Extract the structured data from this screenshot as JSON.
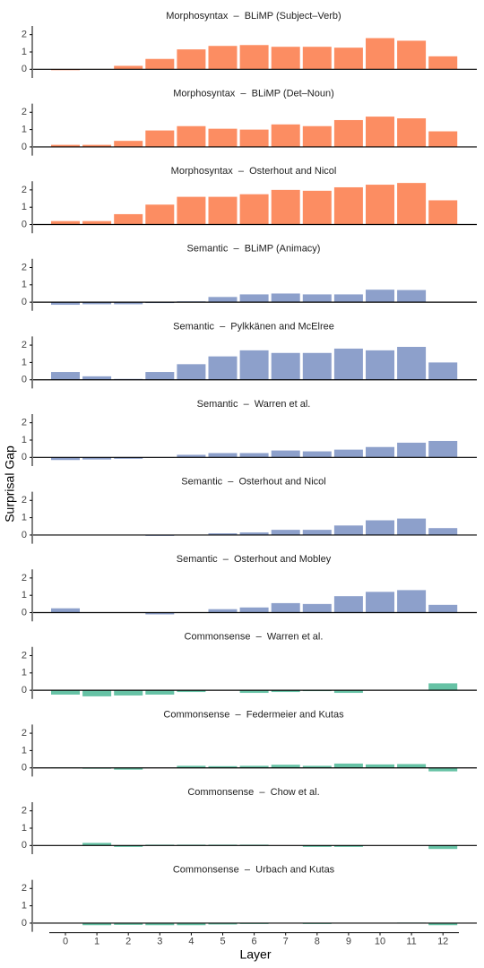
{
  "y_label": "Surprisal Gap",
  "x_label": "Layer",
  "chart_data": [
    {
      "type": "bar",
      "title": "Morphosyntax  –  BLiMP (Subject–Verb)",
      "categories": [
        "0",
        "1",
        "2",
        "3",
        "4",
        "5",
        "6",
        "7",
        "8",
        "9",
        "10",
        "11",
        "12"
      ],
      "values": [
        -0.05,
        0.02,
        0.2,
        0.6,
        1.15,
        1.35,
        1.4,
        1.3,
        1.3,
        1.25,
        1.8,
        1.65,
        0.75
      ],
      "color": "#fc8d62",
      "ylim": [
        -0.5,
        2.5
      ],
      "yticks": [
        0,
        1,
        2
      ]
    },
    {
      "type": "bar",
      "title": "Morphosyntax  –  BLiMP (Det–Noun)",
      "categories": [
        "0",
        "1",
        "2",
        "3",
        "4",
        "5",
        "6",
        "7",
        "8",
        "9",
        "10",
        "11",
        "12"
      ],
      "values": [
        0.12,
        0.12,
        0.35,
        0.95,
        1.2,
        1.05,
        1.0,
        1.3,
        1.2,
        1.55,
        1.75,
        1.65,
        0.9
      ],
      "color": "#fc8d62",
      "ylim": [
        -0.5,
        2.5
      ],
      "yticks": [
        0,
        1,
        2
      ]
    },
    {
      "type": "bar",
      "title": "Morphosyntax  –  Osterhout and Nicol",
      "categories": [
        "0",
        "1",
        "2",
        "3",
        "4",
        "5",
        "6",
        "7",
        "8",
        "9",
        "10",
        "11",
        "12"
      ],
      "values": [
        0.2,
        0.2,
        0.6,
        1.15,
        1.6,
        1.6,
        1.75,
        2.0,
        1.95,
        2.15,
        2.3,
        2.4,
        1.4
      ],
      "color": "#fc8d62",
      "ylim": [
        -0.5,
        2.5
      ],
      "yticks": [
        0,
        1,
        2
      ]
    },
    {
      "type": "bar",
      "title": "Semantic  –  BLiMP (Animacy)",
      "categories": [
        "0",
        "1",
        "2",
        "3",
        "4",
        "5",
        "6",
        "7",
        "8",
        "9",
        "10",
        "11",
        "12"
      ],
      "values": [
        -0.15,
        -0.12,
        -0.12,
        -0.05,
        0.05,
        0.3,
        0.45,
        0.5,
        0.45,
        0.45,
        0.72,
        0.7,
        0.02
      ],
      "color": "#8da0cb",
      "ylim": [
        -0.5,
        2.5
      ],
      "yticks": [
        0,
        1,
        2
      ]
    },
    {
      "type": "bar",
      "title": "Semantic  –  Pylkkänen and McElree",
      "categories": [
        "0",
        "1",
        "2",
        "3",
        "4",
        "5",
        "6",
        "7",
        "8",
        "9",
        "10",
        "11",
        "12"
      ],
      "values": [
        0.45,
        0.2,
        0.05,
        0.45,
        0.9,
        1.35,
        1.7,
        1.55,
        1.55,
        1.8,
        1.7,
        1.9,
        1.0
      ],
      "color": "#8da0cb",
      "ylim": [
        -0.5,
        2.5
      ],
      "yticks": [
        0,
        1,
        2
      ]
    },
    {
      "type": "bar",
      "title": "Semantic  –  Warren et al.",
      "categories": [
        "0",
        "1",
        "2",
        "3",
        "4",
        "5",
        "6",
        "7",
        "8",
        "9",
        "10",
        "11",
        "12"
      ],
      "values": [
        -0.15,
        -0.12,
        -0.08,
        -0.02,
        0.15,
        0.25,
        0.25,
        0.4,
        0.35,
        0.45,
        0.6,
        0.85,
        0.95
      ],
      "color": "#8da0cb",
      "ylim": [
        -0.5,
        2.5
      ],
      "yticks": [
        0,
        1,
        2
      ]
    },
    {
      "type": "bar",
      "title": "Semantic  –  Osterhout and Nicol",
      "categories": [
        "0",
        "1",
        "2",
        "3",
        "4",
        "5",
        "6",
        "7",
        "8",
        "9",
        "10",
        "11",
        "12"
      ],
      "values": [
        0.02,
        0,
        0,
        -0.05,
        0,
        0.1,
        0.15,
        0.3,
        0.3,
        0.55,
        0.85,
        0.95,
        0.4
      ],
      "color": "#8da0cb",
      "ylim": [
        -0.5,
        2.5
      ],
      "yticks": [
        0,
        1,
        2
      ]
    },
    {
      "type": "bar",
      "title": "Semantic  –  Osterhout and Mobley",
      "categories": [
        "0",
        "1",
        "2",
        "3",
        "4",
        "5",
        "6",
        "7",
        "8",
        "9",
        "10",
        "11",
        "12"
      ],
      "values": [
        0.25,
        0,
        0,
        -0.1,
        0,
        0.2,
        0.3,
        0.55,
        0.5,
        0.95,
        1.2,
        1.3,
        0.45
      ],
      "color": "#8da0cb",
      "ylim": [
        -0.5,
        2.5
      ],
      "yticks": [
        0,
        1,
        2
      ]
    },
    {
      "type": "bar",
      "title": "Commonsense  –  Warren et al.",
      "categories": [
        "0",
        "1",
        "2",
        "3",
        "4",
        "5",
        "6",
        "7",
        "8",
        "9",
        "10",
        "11",
        "12"
      ],
      "values": [
        -0.25,
        -0.35,
        -0.3,
        -0.25,
        -0.1,
        0,
        -0.15,
        -0.1,
        -0.05,
        -0.15,
        0,
        0.02,
        0.4
      ],
      "color": "#66c2a5",
      "ylim": [
        -0.5,
        2.5
      ],
      "yticks": [
        0,
        1,
        2
      ]
    },
    {
      "type": "bar",
      "title": "Commonsense  –  Federmeier and Kutas",
      "categories": [
        "0",
        "1",
        "2",
        "3",
        "4",
        "5",
        "6",
        "7",
        "8",
        "9",
        "10",
        "11",
        "12"
      ],
      "values": [
        0.02,
        -0.05,
        -0.1,
        0,
        0.12,
        0.1,
        0.12,
        0.18,
        0.12,
        0.25,
        0.2,
        0.22,
        -0.2
      ],
      "color": "#66c2a5",
      "ylim": [
        -0.5,
        2.5
      ],
      "yticks": [
        0,
        1,
        2
      ]
    },
    {
      "type": "bar",
      "title": "Commonsense  –  Chow et al.",
      "categories": [
        "0",
        "1",
        "2",
        "3",
        "4",
        "5",
        "6",
        "7",
        "8",
        "9",
        "10",
        "11",
        "12"
      ],
      "values": [
        0,
        0.15,
        -0.08,
        0.05,
        0.05,
        0.05,
        0.05,
        0,
        -0.08,
        -0.08,
        0,
        0,
        -0.2
      ],
      "color": "#66c2a5",
      "ylim": [
        -0.5,
        2.5
      ],
      "yticks": [
        0,
        1,
        2
      ]
    },
    {
      "type": "bar",
      "title": "Commonsense  –  Urbach and Kutas",
      "categories": [
        "0",
        "1",
        "2",
        "3",
        "4",
        "5",
        "6",
        "7",
        "8",
        "9",
        "10",
        "11",
        "12"
      ],
      "values": [
        0,
        -0.12,
        -0.1,
        -0.12,
        -0.12,
        -0.08,
        -0.05,
        0,
        -0.05,
        0,
        0,
        0.03,
        -0.12
      ],
      "color": "#66c2a5",
      "ylim": [
        -0.5,
        2.5
      ],
      "yticks": [
        0,
        1,
        2
      ]
    }
  ]
}
